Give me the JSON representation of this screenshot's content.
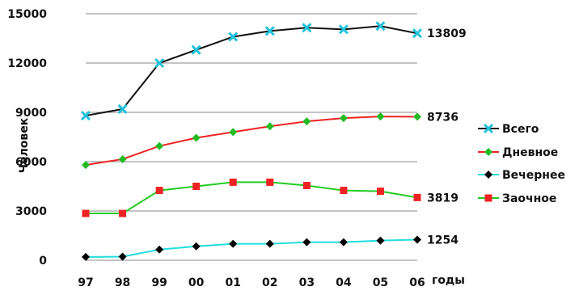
{
  "chart_data": {
    "type": "line",
    "ylabel": "Человек",
    "xlabel": "годы",
    "categories": [
      "97",
      "98",
      "99",
      "00",
      "01",
      "02",
      "03",
      "04",
      "05",
      "06"
    ],
    "ylim": [
      0,
      15000
    ],
    "yticks": [
      0,
      3000,
      6000,
      9000,
      12000,
      15000
    ],
    "grid": "horizontal",
    "legend_position": "right",
    "series": [
      {
        "name": "Всего",
        "line_color": "#111111",
        "marker_color": "#22c3dc",
        "marker": "x",
        "values": [
          8800,
          9200,
          12000,
          12800,
          13600,
          13950,
          14150,
          14050,
          14250,
          13809
        ],
        "end_label": "13809"
      },
      {
        "name": "Дневное",
        "line_color": "#ee2222",
        "marker_color": "#22bb22",
        "marker": "diamond",
        "values": [
          5800,
          6150,
          6950,
          7450,
          7800,
          8150,
          8450,
          8650,
          8750,
          8736
        ],
        "end_label": "8736"
      },
      {
        "name": "Вечернее",
        "line_color": "#22dddd",
        "marker_color": "#000000",
        "marker": "diamond",
        "values": [
          200,
          220,
          650,
          850,
          1000,
          1000,
          1100,
          1100,
          1200,
          1254
        ],
        "end_label": "1254"
      },
      {
        "name": "Заочное",
        "line_color": "#22cc22",
        "marker_color": "#ee2222",
        "marker": "square",
        "values": [
          2850,
          2850,
          4250,
          4500,
          4750,
          4750,
          4550,
          4250,
          4200,
          3819
        ],
        "end_label": "3819"
      }
    ]
  }
}
